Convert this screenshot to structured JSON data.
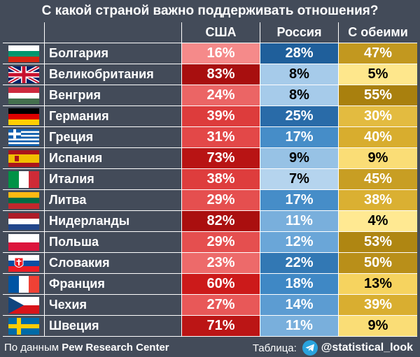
{
  "title": "С какой страной важно поддерживать отношения?",
  "chart_data": {
    "type": "table",
    "title": "С какой страной важно поддерживать отношения?",
    "columns": [
      "США",
      "Россия",
      "С обеими"
    ],
    "rows": [
      {
        "country": "Болгария",
        "flag": "bulgaria-flag-icon",
        "values": [
          16,
          28,
          47
        ]
      },
      {
        "country": "Великобритания",
        "flag": "uk-flag-icon",
        "values": [
          83,
          8,
          5
        ]
      },
      {
        "country": "Венгрия",
        "flag": "hungary-flag-icon",
        "values": [
          24,
          8,
          55
        ]
      },
      {
        "country": "Германия",
        "flag": "germany-flag-icon",
        "values": [
          39,
          25,
          30
        ]
      },
      {
        "country": "Греция",
        "flag": "greece-flag-icon",
        "values": [
          31,
          17,
          40
        ]
      },
      {
        "country": "Испания",
        "flag": "spain-flag-icon",
        "values": [
          73,
          9,
          9
        ]
      },
      {
        "country": "Италия",
        "flag": "italy-flag-icon",
        "values": [
          38,
          7,
          45
        ]
      },
      {
        "country": "Литва",
        "flag": "lithuania-flag-icon",
        "values": [
          29,
          17,
          38
        ]
      },
      {
        "country": "Нидерланды",
        "flag": "netherlands-flag-icon",
        "values": [
          82,
          11,
          4
        ]
      },
      {
        "country": "Польша",
        "flag": "poland-flag-icon",
        "values": [
          29,
          12,
          53
        ]
      },
      {
        "country": "Словакия",
        "flag": "slovakia-flag-icon",
        "values": [
          23,
          22,
          50
        ]
      },
      {
        "country": "Франция",
        "flag": "france-flag-icon",
        "values": [
          60,
          18,
          13
        ]
      },
      {
        "country": "Чехия",
        "flag": "czechia-flag-icon",
        "values": [
          27,
          14,
          39
        ]
      },
      {
        "country": "Швеция",
        "flag": "sweden-flag-icon",
        "values": [
          71,
          11,
          9
        ]
      }
    ],
    "value_suffix": "%"
  },
  "footer": {
    "source_prefix": "По данным",
    "source_name": "Pew Research Center",
    "table_label": "Таблица:",
    "handle": "@statistical_look",
    "icon": "telegram-icon"
  }
}
